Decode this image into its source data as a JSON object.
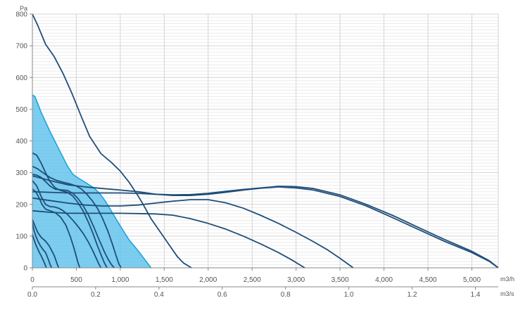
{
  "colors": {
    "curve": "#1f4e79",
    "highlight_fill": "#5bc0eb",
    "highlight_stroke": "#1ea5dc",
    "major_grid": "#d4d4d4",
    "minor_grid": "#ececec",
    "axis": "#888888"
  },
  "chart_data": {
    "type": "line",
    "title": "",
    "y_unit": "Pa",
    "x_unit": "m3/h",
    "x2_unit": "m3/s",
    "ylim": [
      0,
      800
    ],
    "xlim": [
      0,
      5300
    ],
    "x2lim": [
      0,
      1.4722
    ],
    "y_ticks": [
      0,
      100,
      200,
      300,
      400,
      500,
      600,
      700,
      800
    ],
    "x_ticks": [
      0,
      500,
      1000,
      1500,
      2000,
      2500,
      3000,
      3500,
      4000,
      4500,
      5000
    ],
    "x_tick_labels": [
      "0",
      "500",
      "1,000",
      "1,500",
      "2,000",
      "2,500",
      "3,000",
      "3,500",
      "4,000",
      "4,500",
      "5,000"
    ],
    "x2_ticks": [
      0,
      0.2,
      0.4,
      0.6,
      0.8,
      1.0,
      1.2,
      1.4
    ],
    "x2_tick_labels": [
      "0.0",
      "0.2",
      "0.4",
      "0.6",
      "0.8",
      "1.0",
      "1.2",
      "1.4"
    ],
    "grid": true,
    "highlighted_series": {
      "x": [
        0,
        30,
        100,
        200,
        300,
        400,
        460,
        520,
        600,
        700,
        760,
        800,
        840,
        900,
        1000,
        1100,
        1200,
        1350
      ],
      "y": [
        545,
        540,
        490,
        430,
        375,
        320,
        295,
        283,
        270,
        252,
        236,
        222,
        206,
        178,
        132,
        88,
        55,
        0
      ]
    },
    "series": [
      {
        "x": [
          0,
          60,
          150,
          250,
          350,
          450,
          560,
          650,
          780,
          900,
          1000,
          1100,
          1200,
          1260,
          1350,
          1450,
          1550,
          1650,
          1720,
          1810
        ],
        "y": [
          800,
          765,
          705,
          665,
          612,
          550,
          475,
          415,
          360,
          332,
          305,
          270,
          228,
          200,
          155,
          115,
          75,
          35,
          15,
          0
        ]
      },
      {
        "x": [
          0,
          200,
          400,
          600,
          800,
          1000,
          1200,
          1400,
          1600,
          1800,
          2000,
          2200,
          2400,
          2600,
          2800,
          3000,
          3200,
          3500,
          3800,
          4100,
          4400,
          4700,
          5000,
          5200,
          5300
        ],
        "y": [
          290,
          275,
          262,
          255,
          250,
          245,
          240,
          232,
          228,
          228,
          232,
          238,
          245,
          251,
          255,
          252,
          245,
          225,
          195,
          158,
          120,
          82,
          48,
          20,
          0
        ]
      },
      {
        "x": [
          0,
          200,
          400,
          600,
          800,
          1000,
          1200,
          1400,
          1600,
          1800,
          2000,
          2200,
          2400,
          2600,
          2800,
          3000,
          3200,
          3500,
          3800,
          4100,
          4400,
          4700,
          5000,
          5200,
          5300
        ],
        "y": [
          240,
          238,
          236,
          236,
          236,
          236,
          235,
          232,
          230,
          231,
          235,
          241,
          247,
          252,
          257,
          256,
          250,
          230,
          200,
          165,
          126,
          88,
          52,
          22,
          0
        ]
      },
      {
        "x": [
          0,
          200,
          400,
          600,
          800,
          1000,
          1200,
          1400,
          1600,
          1800,
          2000,
          2200,
          2400,
          2600,
          2800,
          3000,
          3200,
          3350,
          3500,
          3600,
          3650
        ],
        "y": [
          220,
          212,
          204,
          198,
          195,
          195,
          198,
          204,
          210,
          215,
          215,
          205,
          188,
          165,
          140,
          112,
          82,
          58,
          30,
          10,
          0
        ]
      },
      {
        "x": [
          0,
          200,
          400,
          600,
          800,
          1000,
          1200,
          1400,
          1600,
          1800,
          2000,
          2200,
          2400,
          2600,
          2800,
          2950,
          3050,
          3100
        ],
        "y": [
          180,
          175,
          172,
          172,
          172,
          172,
          171,
          170,
          166,
          155,
          140,
          122,
          100,
          75,
          48,
          25,
          8,
          0
        ]
      },
      {
        "x": [
          0,
          60,
          120,
          200,
          280,
          350,
          420,
          500,
          560,
          620,
          680,
          740,
          800,
          860,
          910,
          950,
          985,
          1010
        ],
        "y": [
          320,
          312,
          300,
          285,
          275,
          270,
          265,
          258,
          248,
          232,
          212,
          188,
          155,
          115,
          75,
          40,
          12,
          0
        ]
      },
      {
        "x": [
          0,
          50,
          100,
          150,
          200,
          260,
          320,
          400,
          460,
          520,
          580,
          640,
          700,
          760,
          820,
          860,
          900,
          930
        ],
        "y": [
          295,
          292,
          285,
          272,
          258,
          248,
          246,
          244,
          235,
          218,
          195,
          165,
          128,
          88,
          50,
          28,
          10,
          0
        ]
      },
      {
        "x": [
          0,
          50,
          100,
          150,
          200,
          260,
          320,
          400,
          460,
          520,
          580,
          640,
          690,
          740,
          790,
          820,
          850
        ],
        "y": [
          362,
          355,
          330,
          300,
          272,
          252,
          244,
          238,
          226,
          205,
          178,
          142,
          108,
          70,
          35,
          15,
          0
        ]
      },
      {
        "x": [
          0,
          50,
          100,
          150,
          200,
          250,
          300,
          350,
          400,
          460,
          520,
          580,
          640,
          690,
          730,
          760,
          780
        ],
        "y": [
          275,
          258,
          225,
          200,
          193,
          192,
          188,
          180,
          168,
          150,
          130,
          108,
          80,
          52,
          28,
          10,
          0
        ]
      },
      {
        "x": [
          0,
          40,
          80,
          110,
          150,
          200,
          260,
          320,
          380,
          430,
          470,
          500,
          520,
          540
        ],
        "y": [
          248,
          240,
          218,
          200,
          185,
          180,
          174,
          160,
          135,
          100,
          65,
          35,
          15,
          0
        ]
      },
      {
        "x": [
          0,
          30,
          60,
          100,
          150,
          190,
          220,
          250,
          270,
          285,
          300
        ],
        "y": [
          152,
          132,
          112,
          96,
          84,
          70,
          54,
          38,
          22,
          10,
          0
        ]
      },
      {
        "x": [
          0,
          20,
          40,
          60,
          90,
          120,
          150,
          170,
          190,
          205,
          220
        ],
        "y": [
          140,
          116,
          100,
          86,
          70,
          58,
          48,
          35,
          20,
          8,
          0
        ]
      },
      {
        "x": [
          0,
          20,
          40,
          60,
          80,
          100,
          120,
          140,
          150,
          160
        ],
        "y": [
          105,
          88,
          72,
          60,
          48,
          38,
          26,
          14,
          6,
          0
        ]
      }
    ]
  }
}
